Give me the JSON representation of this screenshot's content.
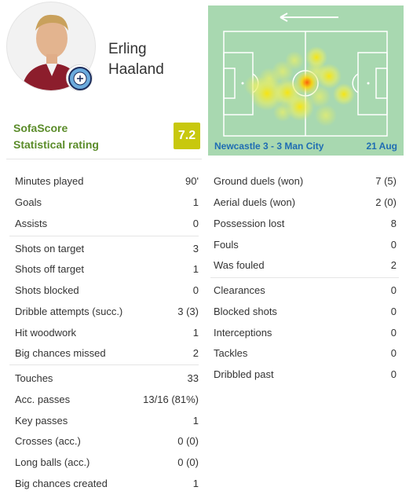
{
  "player": {
    "first_name": "Erling",
    "last_name": "Haaland"
  },
  "rating": {
    "label_line1": "SofaScore",
    "label_line2": "Statistical rating",
    "value": "7.2",
    "color": "#c8c80e"
  },
  "heatmap": {
    "match": "Newcastle 3 - 3 Man City",
    "date": "21 Aug",
    "attack_direction_icon": "arrow-left-icon"
  },
  "stats_left": {
    "group1": [
      {
        "label": "Minutes played",
        "value": "90'"
      },
      {
        "label": "Goals",
        "value": "1"
      },
      {
        "label": "Assists",
        "value": "0"
      }
    ],
    "group2": [
      {
        "label": "Shots on target",
        "value": "3"
      },
      {
        "label": "Shots off target",
        "value": "1"
      },
      {
        "label": "Shots blocked",
        "value": "0"
      },
      {
        "label": "Dribble attempts (succ.)",
        "value": "3 (3)"
      },
      {
        "label": "Hit woodwork",
        "value": "1"
      },
      {
        "label": "Big chances missed",
        "value": "2"
      }
    ],
    "group3": [
      {
        "label": "Touches",
        "value": "33"
      },
      {
        "label": "Acc. passes",
        "value": "13/16 (81%)"
      },
      {
        "label": "Key passes",
        "value": "1"
      },
      {
        "label": "Crosses (acc.)",
        "value": "0 (0)"
      },
      {
        "label": "Long balls (acc.)",
        "value": "0 (0)"
      },
      {
        "label": "Big chances created",
        "value": "1"
      }
    ]
  },
  "stats_right": {
    "group1": [
      {
        "label": "Ground duels (won)",
        "value": "7 (5)"
      },
      {
        "label": "Aerial duels (won)",
        "value": "2 (0)"
      },
      {
        "label": "Possession lost",
        "value": "8"
      },
      {
        "label": "Fouls",
        "value": "0"
      },
      {
        "label": "Was fouled",
        "value": "2"
      }
    ],
    "group2": [
      {
        "label": "Clearances",
        "value": "0"
      },
      {
        "label": "Blocked shots",
        "value": "0"
      },
      {
        "label": "Interceptions",
        "value": "0"
      },
      {
        "label": "Tackles",
        "value": "0"
      },
      {
        "label": "Dribbled past",
        "value": "0"
      }
    ]
  }
}
